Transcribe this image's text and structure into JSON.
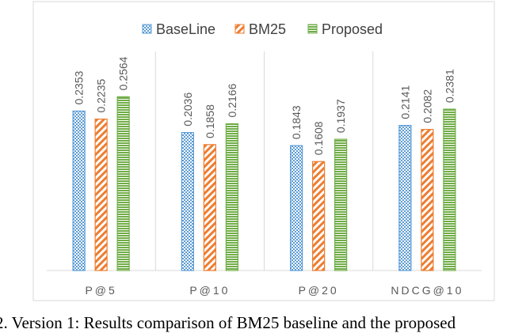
{
  "chart_data": {
    "type": "bar",
    "title": "",
    "xlabel": "",
    "ylabel": "",
    "ylim": [
      0,
      0.3
    ],
    "grid": false,
    "legend_position": "top",
    "categories": [
      "P@5",
      "P@10",
      "P@20",
      "NDCG@10"
    ],
    "series": [
      {
        "name": "BaseLine",
        "values": [
          0.2353,
          0.2036,
          0.1843,
          0.2141
        ],
        "color": "#5b9bd5",
        "pattern": "dots"
      },
      {
        "name": "BM25",
        "values": [
          0.2235,
          0.1858,
          0.1608,
          0.2082
        ],
        "color": "#ed7d31",
        "pattern": "diagonal"
      },
      {
        "name": "Proposed",
        "values": [
          0.2564,
          0.2166,
          0.1937,
          0.2381
        ],
        "color": "#70ad47",
        "pattern": "horizontal"
      }
    ],
    "data_labels": [
      [
        "0.2353",
        "0.2235",
        "0.2564"
      ],
      [
        "0.2036",
        "0.1858",
        "0.2166"
      ],
      [
        "0.1843",
        "0.1608",
        "0.1937"
      ],
      [
        "0.2141",
        "0.2082",
        "0.2381"
      ]
    ]
  },
  "caption": "2. Version 1: Results comparison of BM25 baseline and the proposed"
}
